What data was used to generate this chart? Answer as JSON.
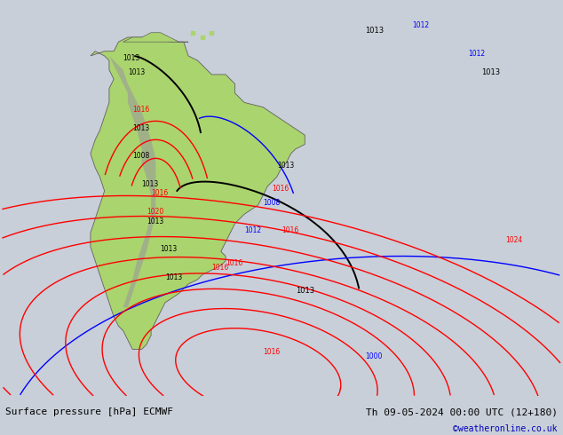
{
  "title_left": "Surface pressure [hPa] ECMWF",
  "title_right": "Th 09-05-2024 00:00 UTC (12+180)",
  "watermark": "©weatheronline.co.uk",
  "bg_color": "#c8cfd8",
  "land_color": "#aad46e",
  "mountain_color": "#9a9a9a",
  "coast_color": "#606060",
  "bottom_bar_color": "#b8b8b8",
  "watermark_color": "#0000bb",
  "xlim": [
    -100,
    20
  ],
  "ylim": [
    -65,
    20
  ],
  "figsize": [
    6.34,
    4.9
  ],
  "dpi": 100
}
